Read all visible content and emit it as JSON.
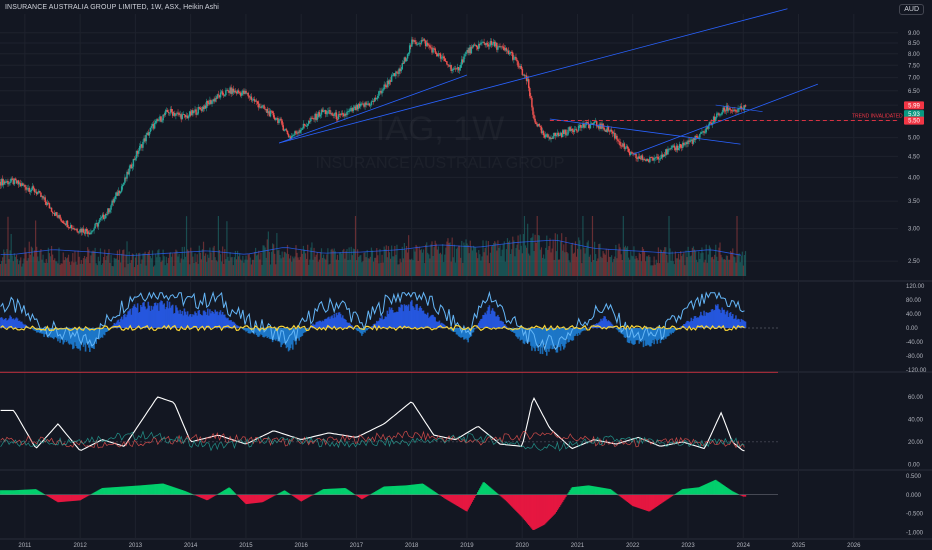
{
  "header": {
    "title": "INSURANCE AUSTRALIA GROUP LIMITED, 1W, ASX, Heikin Ashi"
  },
  "currency": "AUD",
  "watermark": {
    "ticker": "IAG, 1W",
    "name": "INSURANCE AUSTRALIA GROUP"
  },
  "colors": {
    "up": "#26a69a",
    "down": "#ef5350",
    "trend": "#2962ff",
    "invalidated": "#f23645",
    "background": "#131722"
  },
  "chart_data": [
    {
      "type": "line",
      "title": "INSURANCE AUSTRALIA GROUP LIMITED, 1W, ASX, Heikin Ashi",
      "chart_kind": "candlestick",
      "y_scale": "log",
      "ylim": [
        2.3,
        10.0
      ],
      "y_ticks": [
        "9.00",
        "8.50",
        "8.00",
        "7.50",
        "7.00",
        "6.50",
        "6.00",
        "5.50",
        "5.00",
        "4.50",
        "4.00",
        "3.50",
        "3.00",
        "2.50"
      ],
      "x_ticks": [
        "2011",
        "2012",
        "2013",
        "2014",
        "2015",
        "2016",
        "2017",
        "2018",
        "2019",
        "2020",
        "2021",
        "2022",
        "2023",
        "2024",
        "2025",
        "2026"
      ],
      "price_series": {
        "x": [
          2010.8,
          2011.2,
          2011.6,
          2011.9,
          2012.2,
          2012.5,
          2012.8,
          2013.0,
          2013.3,
          2013.6,
          2013.9,
          2014.2,
          2014.5,
          2014.7,
          2015.0,
          2015.3,
          2015.6,
          2015.8,
          2016.1,
          2016.4,
          2016.7,
          2017.0,
          2017.3,
          2017.6,
          2017.8,
          2018.0,
          2018.2,
          2018.5,
          2018.8,
          2019.0,
          2019.3,
          2019.5,
          2019.8,
          2020.1,
          2020.2,
          2020.4,
          2020.7,
          2021.0,
          2021.3,
          2021.6,
          2021.8,
          2022.0,
          2022.3,
          2022.6,
          2022.9,
          2023.2,
          2023.5,
          2023.7,
          2023.9,
          2024.0
        ],
        "close": [
          3.9,
          3.7,
          3.2,
          3.0,
          2.95,
          3.3,
          3.9,
          4.5,
          5.3,
          5.8,
          5.6,
          5.9,
          6.3,
          6.5,
          6.4,
          5.9,
          5.5,
          5.0,
          5.4,
          5.8,
          5.6,
          5.9,
          6.1,
          6.9,
          7.3,
          8.5,
          8.6,
          7.9,
          7.2,
          8.1,
          8.5,
          8.4,
          8.0,
          6.8,
          5.6,
          5.0,
          5.1,
          5.3,
          5.4,
          5.2,
          4.8,
          4.5,
          4.4,
          4.6,
          4.8,
          5.0,
          5.6,
          5.9,
          5.8,
          5.9
        ]
      },
      "last_price": "5.99",
      "prev_close": "5.93",
      "invalidation_level": "5.50",
      "annotations": [
        "TREND INVALIDATED"
      ],
      "volume_series": {
        "x": [
          2010.8,
          2011.5,
          2012.2,
          2012.9,
          2013.6,
          2014.3,
          2015.0,
          2015.7,
          2016.4,
          2017.1,
          2017.8,
          2018.5,
          2019.2,
          2019.9,
          2020.6,
          2021.3,
          2022.0,
          2022.7,
          2023.4,
          2024.0
        ],
        "values": [
          18,
          22,
          20,
          17,
          19,
          21,
          18,
          24,
          19,
          20,
          22,
          26,
          24,
          28,
          30,
          23,
          21,
          19,
          22,
          17
        ]
      }
    },
    {
      "type": "line",
      "title": "",
      "ylim": [
        -125,
        125
      ],
      "y_ticks": [
        "120.00",
        "80.00",
        "40.00",
        "0.00",
        "-40.00",
        "-80.00",
        "-120.00"
      ],
      "series": [
        {
          "x": [
            2010.8,
            2011.3,
            2011.8,
            2012.2,
            2012.6,
            2013.0,
            2013.5,
            2014.0,
            2014.5,
            2015.0,
            2015.4,
            2015.8,
            2016.2,
            2016.7,
            2017.1,
            2017.6,
            2018.0,
            2018.5,
            2019.0,
            2019.4,
            2019.8,
            2020.2,
            2020.6,
            2021.0,
            2021.5,
            2022.0,
            2022.5,
            2023.0,
            2023.5,
            2024.0
          ],
          "values": [
            30,
            -20,
            -50,
            -60,
            10,
            60,
            70,
            40,
            50,
            -10,
            -30,
            -60,
            10,
            40,
            -20,
            50,
            70,
            20,
            -40,
            60,
            -10,
            -60,
            -70,
            -20,
            30,
            -50,
            -40,
            20,
            60,
            20
          ]
        }
      ]
    },
    {
      "type": "line",
      "title": "",
      "ylim": [
        -5,
        75
      ],
      "y_ticks": [
        "60.00",
        "40.00",
        "20.00",
        "0.00"
      ],
      "series": [
        {
          "x": [
            2010.8,
            2011.2,
            2011.6,
            2012.0,
            2012.4,
            2012.8,
            2013.1,
            2013.4,
            2013.7,
            2014.0,
            2014.5,
            2015.0,
            2015.5,
            2016.0,
            2016.5,
            2017.0,
            2017.5,
            2018.0,
            2018.4,
            2018.8,
            2019.2,
            2019.6,
            2020.0,
            2020.2,
            2020.5,
            2020.9,
            2021.3,
            2021.7,
            2022.1,
            2022.5,
            2022.9,
            2023.3,
            2023.6,
            2023.8,
            2024.0
          ],
          "values": [
            48,
            14,
            36,
            12,
            22,
            16,
            38,
            60,
            55,
            20,
            26,
            18,
            30,
            22,
            28,
            24,
            36,
            56,
            26,
            22,
            34,
            18,
            16,
            60,
            32,
            14,
            22,
            18,
            24,
            16,
            20,
            14,
            46,
            20,
            12
          ]
        },
        {
          "x": [
            2010.8,
            2012.0,
            2013.2,
            2014.4,
            2015.6,
            2016.8,
            2018.0,
            2019.2,
            2020.4,
            2021.6,
            2022.8,
            2024.0
          ],
          "values": [
            22,
            18,
            20,
            24,
            20,
            22,
            26,
            20,
            28,
            18,
            20,
            18
          ]
        },
        {
          "x": [
            2010.8,
            2012.0,
            2013.2,
            2014.4,
            2015.6,
            2016.8,
            2018.0,
            2019.2,
            2020.4,
            2021.6,
            2022.8,
            2024.0
          ],
          "values": [
            18,
            22,
            26,
            16,
            22,
            18,
            20,
            24,
            14,
            22,
            18,
            20
          ]
        }
      ]
    },
    {
      "type": "area",
      "title": "",
      "ylim": [
        -1.1,
        0.5
      ],
      "y_ticks": [
        "0.500",
        "0.000",
        "-0.500",
        "-1.000"
      ],
      "series": [
        {
          "x": [
            2010.8,
            2011.2,
            2011.6,
            2012.0,
            2012.4,
            2012.8,
            2013.1,
            2013.5,
            2013.9,
            2014.3,
            2014.7,
            2015.0,
            2015.3,
            2015.7,
            2016.0,
            2016.4,
            2016.8,
            2017.1,
            2017.5,
            2017.9,
            2018.2,
            2018.6,
            2019.0,
            2019.3,
            2019.7,
            2020.0,
            2020.2,
            2020.4,
            2020.6,
            2020.9,
            2021.2,
            2021.6,
            2022.0,
            2022.3,
            2022.6,
            2022.9,
            2023.2,
            2023.5,
            2023.8,
            2024.0
          ],
          "values": [
            0.12,
            0.15,
            -0.2,
            -0.15,
            0.18,
            0.22,
            0.25,
            0.3,
            0.1,
            -0.15,
            0.2,
            -0.25,
            -0.2,
            0.12,
            -0.18,
            0.15,
            0.18,
            -0.12,
            0.22,
            0.25,
            0.3,
            -0.1,
            -0.45,
            0.35,
            -0.15,
            -0.6,
            -0.95,
            -0.8,
            -0.5,
            0.2,
            0.25,
            0.15,
            -0.3,
            -0.45,
            -0.15,
            0.15,
            0.2,
            0.4,
            0.1,
            -0.05
          ]
        }
      ]
    }
  ]
}
